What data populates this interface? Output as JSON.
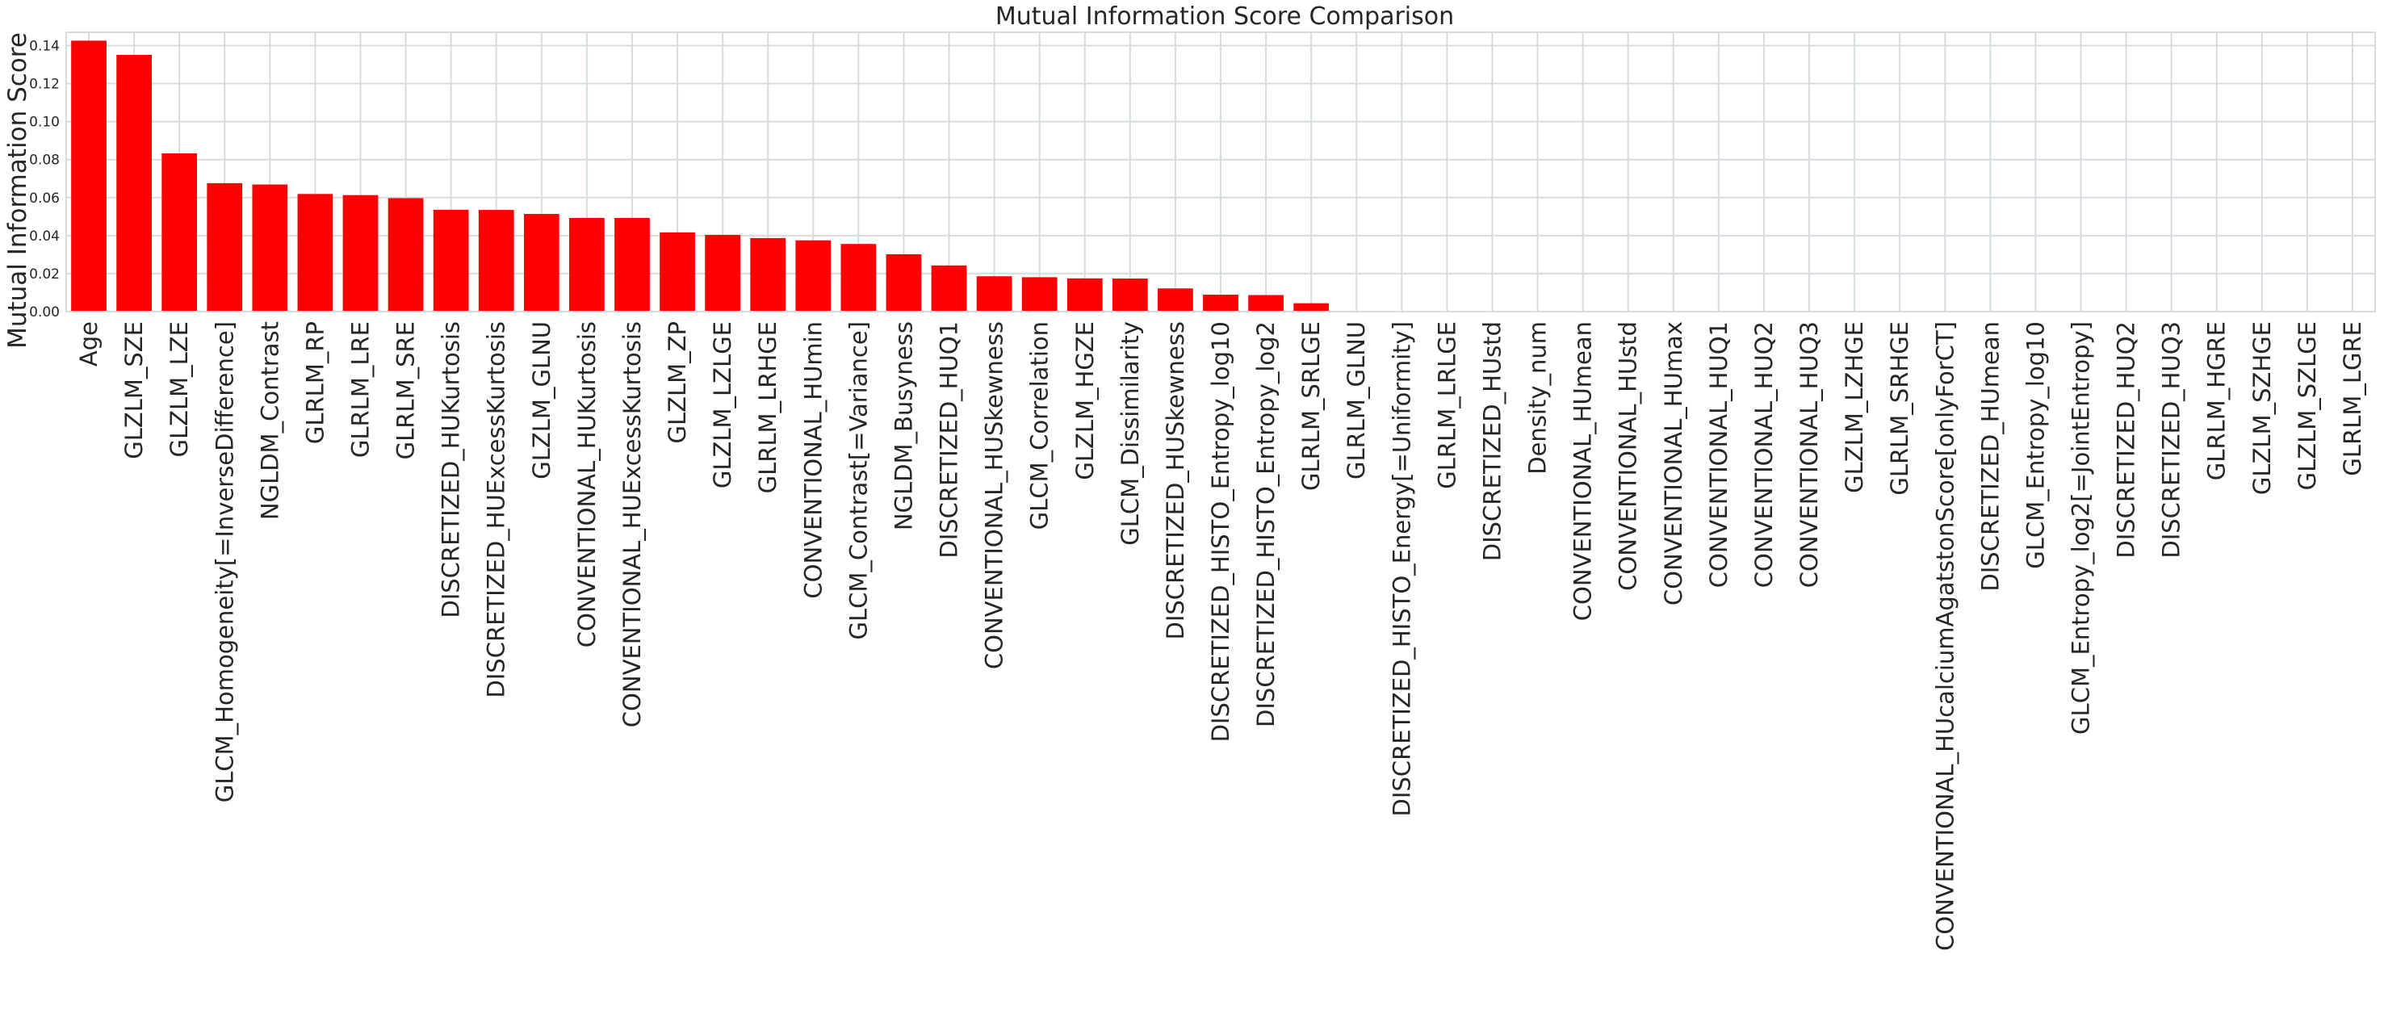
{
  "chart_data": {
    "type": "bar",
    "title": "Mutual Information Score Comparison",
    "xlabel": "",
    "ylabel": "Mutual Information Score",
    "ylim": [
      0,
      0.147
    ],
    "yticks": [
      "0.00",
      "0.02",
      "0.04",
      "0.06",
      "0.08",
      "0.10",
      "0.12",
      "0.14"
    ],
    "grid": true,
    "bar_color": "#ff0000",
    "categories": [
      "Age",
      "GLZLM_SZE",
      "GLZLM_LZE",
      "GLCM_Homogeneity[=InverseDifference]",
      "NGLDM_Contrast",
      "GLRLM_RP",
      "GLRLM_LRE",
      "GLRLM_SRE",
      "DISCRETIZED_HUKurtosis",
      "DISCRETIZED_HUExcessKurtosis",
      "GLZLM_GLNU",
      "CONVENTIONAL_HUKurtosis",
      "CONVENTIONAL_HUExcessKurtosis",
      "GLZLM_ZP",
      "GLZLM_LZLGE",
      "GLRLM_LRHGE",
      "CONVENTIONAL_HUmin",
      "GLCM_Contrast[=Variance]",
      "NGLDM_Busyness",
      "DISCRETIZED_HUQ1",
      "CONVENTIONAL_HUSkewness",
      "GLCM_Correlation",
      "GLZLM_HGZE",
      "GLCM_Dissimilarity",
      "DISCRETIZED_HUSkewness",
      "DISCRETIZED_HISTO_Entropy_log10",
      "DISCRETIZED_HISTO_Entropy_log2",
      "GLRLM_SRLGE",
      "GLRLM_GLNU",
      "DISCRETIZED_HISTO_Energy[=Uniformity]",
      "GLRLM_LRLGE",
      "DISCRETIZED_HUstd",
      "Density_num",
      "CONVENTIONAL_HUmean",
      "CONVENTIONAL_HUstd",
      "CONVENTIONAL_HUmax",
      "CONVENTIONAL_HUQ1",
      "CONVENTIONAL_HUQ2",
      "CONVENTIONAL_HUQ3",
      "GLZLM_LZHGE",
      "GLRLM_SRHGE",
      "CONVENTIONAL_HUcalciumAgatstonScore[onlyForCT]",
      "DISCRETIZED_HUmean",
      "GLCM_Entropy_log10",
      "GLCM_Entropy_log2[=JointEntropy]",
      "DISCRETIZED_HUQ2",
      "DISCRETIZED_HUQ3",
      "GLRLM_HGRE",
      "GLZLM_SZHGE",
      "GLZLM_SZLGE",
      "GLRLM_LGRE"
    ],
    "values": [
      0.1426,
      0.1351,
      0.0833,
      0.0676,
      0.0669,
      0.0619,
      0.0613,
      0.0597,
      0.0536,
      0.0535,
      0.0514,
      0.0493,
      0.0493,
      0.0417,
      0.0404,
      0.0387,
      0.0375,
      0.0356,
      0.0302,
      0.0243,
      0.0186,
      0.0181,
      0.0175,
      0.0174,
      0.0122,
      0.0089,
      0.0087,
      0.0044,
      0,
      0,
      0,
      0,
      0,
      0,
      0,
      0,
      0,
      0,
      0,
      0,
      0,
      0,
      0,
      0,
      0,
      0,
      0,
      0,
      0,
      0,
      0
    ]
  }
}
